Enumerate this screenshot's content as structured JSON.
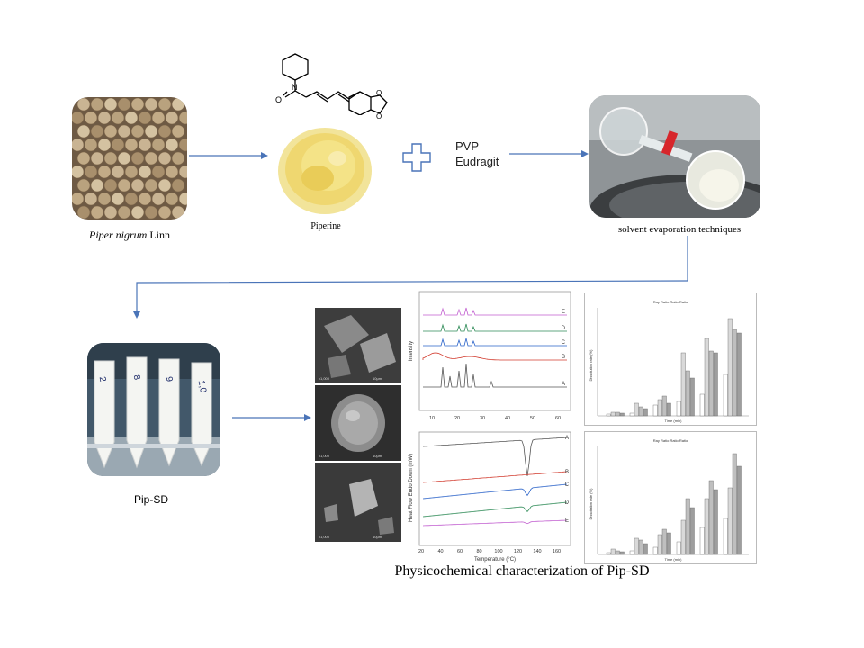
{
  "labels": {
    "source_italic": "Piper nigrum",
    "source_rest": " Linn",
    "piperine": "Piperine",
    "polymer_1": "PVP",
    "polymer_2": "Eudragit",
    "evaporation": "solvent evaporation techniques",
    "product": "Pip-SD",
    "characterization": "Physicochemical characterization  of Pip-SD"
  },
  "xrd_panel": {
    "ylabel": "Intensity",
    "xticks": [
      "10",
      "20",
      "30",
      "40",
      "50",
      "60"
    ],
    "trace_labels": [
      "E",
      "D",
      "C",
      "B",
      "A"
    ],
    "trace_colors": [
      "#c25fd0",
      "#2e8b57",
      "#2a63c9",
      "#d23b2e",
      "#555555"
    ]
  },
  "dsc_panel": {
    "ylabel": "Heat Flow Endo Down (mW)",
    "xlabel": "Temperature (°C)",
    "xticks": [
      "20",
      "40",
      "60",
      "80",
      "100",
      "120",
      "140",
      "160"
    ],
    "trace_labels": [
      "A",
      "B",
      "C",
      "D",
      "E"
    ],
    "trace_colors": [
      "#555555",
      "#d23b2e",
      "#2a63c9",
      "#2e8b57",
      "#c25fd0"
    ]
  },
  "release_panels": {
    "top_title": "Ray Ratio Ratio Ratio",
    "bottom_title": "Ray Ratio Ratio Ratio",
    "xlabel": "Time (min)",
    "ylabel": "Dissolution rate (%)"
  },
  "colors": {
    "arrow": "#4a74b8",
    "plus": "#4a74b8",
    "chart_border": "#bbbbbb"
  }
}
